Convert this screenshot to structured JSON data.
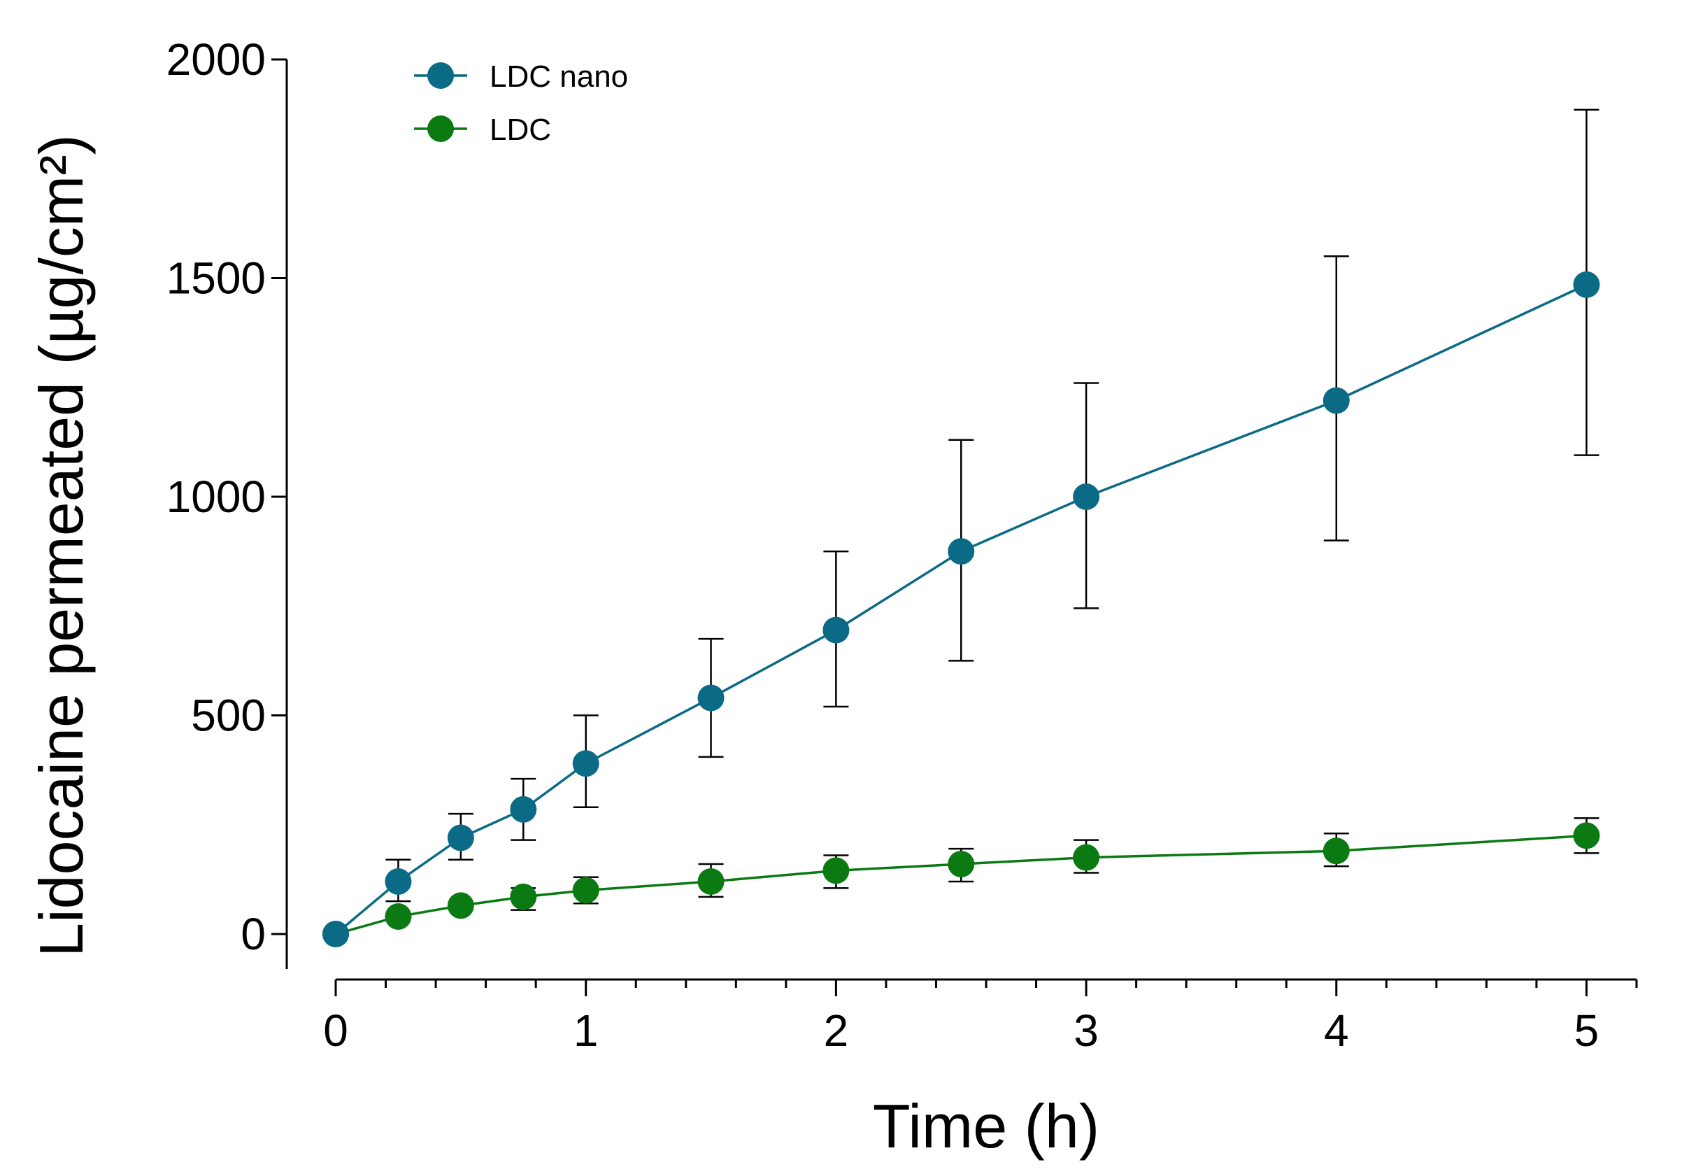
{
  "chart_data": {
    "type": "line",
    "xlabel": "Time (h)",
    "ylabel": "Lidocaine permeated (µg/cm²)",
    "xlim": [
      0,
      5.2
    ],
    "ylim": [
      0,
      2000
    ],
    "x_ticks": [
      0,
      1,
      2,
      3,
      4,
      5
    ],
    "x_tick_labels": [
      "0",
      "1",
      "2",
      "3",
      "4",
      "5"
    ],
    "x_minor_step": 0.2,
    "y_ticks": [
      0,
      500,
      1000,
      1500,
      2000
    ],
    "y_tick_labels": [
      "0",
      "500",
      "1000",
      "1500",
      "2000"
    ],
    "grid": false,
    "legend_position": "top-left",
    "x": [
      0,
      0.25,
      0.5,
      0.75,
      1,
      1.5,
      2,
      2.5,
      3,
      4,
      5
    ],
    "series": [
      {
        "name": "LDC nano",
        "color": "#0b6a85",
        "values": [
          0,
          120,
          220,
          285,
          390,
          540,
          695,
          875,
          1000,
          1220,
          1485
        ],
        "err_upper": [
          0,
          170,
          275,
          355,
          500,
          675,
          875,
          1130,
          1260,
          1550,
          1885
        ],
        "err_lower": [
          0,
          75,
          170,
          215,
          290,
          405,
          520,
          625,
          745,
          900,
          1095
        ]
      },
      {
        "name": "LDC",
        "color": "#0b7a12",
        "values": [
          0,
          40,
          65,
          85,
          100,
          120,
          145,
          160,
          175,
          190,
          225
        ],
        "err_upper": [
          0,
          40,
          65,
          105,
          130,
          160,
          180,
          195,
          215,
          230,
          265
        ],
        "err_lower": [
          0,
          40,
          65,
          55,
          70,
          85,
          105,
          120,
          140,
          155,
          185
        ]
      }
    ]
  }
}
